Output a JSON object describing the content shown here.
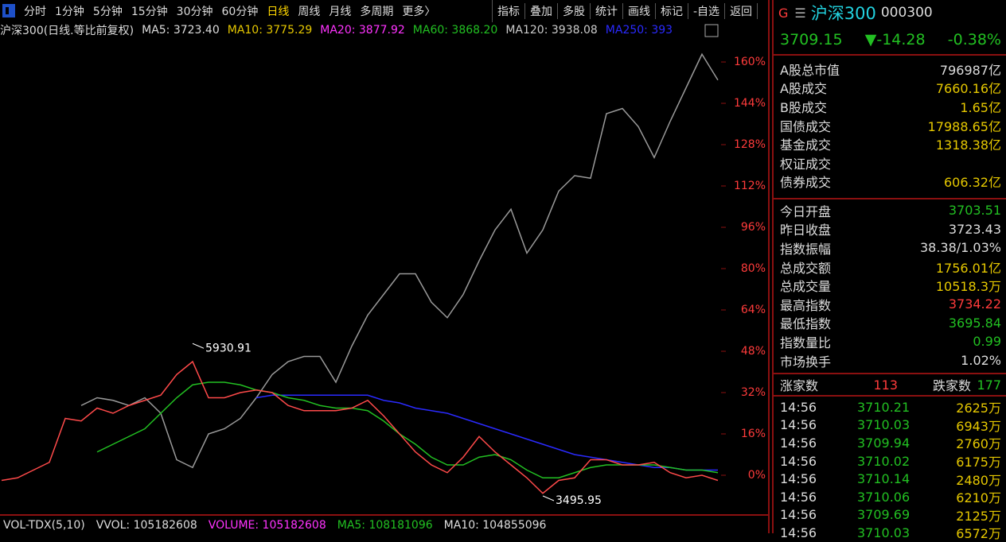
{
  "toolbar": {
    "periods": [
      "分时",
      "1分钟",
      "5分钟",
      "15分钟",
      "30分钟",
      "60分钟",
      "日线",
      "周线",
      "月线",
      "多周期",
      "更多〉"
    ],
    "selected": 6,
    "tools": [
      "指标",
      "叠加",
      "多股",
      "统计",
      "画线",
      "标记",
      "-自选",
      "返回"
    ]
  },
  "chart_header": {
    "name": "沪深300(日线.等比前复权)",
    "ma": [
      {
        "label": "MA5: 3723.40",
        "color": "#dddddd"
      },
      {
        "label": "MA10: 3775.29",
        "color": "#e6c800"
      },
      {
        "label": "MA20: 3877.92",
        "color": "#ff33ff"
      },
      {
        "label": "MA60: 3868.20",
        "color": "#22c022"
      },
      {
        "label": "MA120: 3938.08",
        "color": "#cccccc"
      },
      {
        "label": "MA250: 393",
        "color": "#2a2aff"
      }
    ]
  },
  "chart_data": {
    "type": "line",
    "ylim": [
      -12,
      168
    ],
    "yticks": [
      {
        "value": 0,
        "label": "0%"
      },
      {
        "value": 16,
        "label": "16%"
      },
      {
        "value": 32,
        "label": "32%"
      },
      {
        "value": 48,
        "label": "48%"
      },
      {
        "value": 64,
        "label": "64%"
      },
      {
        "value": 80,
        "label": "80%"
      },
      {
        "value": 96,
        "label": "96%"
      },
      {
        "value": 112,
        "label": "112%"
      },
      {
        "value": 128,
        "label": "128%"
      },
      {
        "value": 144,
        "label": "144%"
      },
      {
        "value": 160,
        "label": "160%"
      }
    ],
    "grid": false,
    "series": [
      {
        "color": "#9a9a9a",
        "values": [
          null,
          null,
          null,
          null,
          null,
          27,
          30,
          29,
          27,
          30,
          24,
          6,
          3,
          16,
          18,
          22,
          30,
          39,
          44,
          46,
          46,
          36,
          50,
          62,
          70,
          78,
          78,
          67,
          61,
          70,
          83,
          95,
          103,
          86,
          95,
          110,
          116,
          115,
          140,
          142,
          135,
          123,
          137,
          150,
          163,
          153
        ]
      },
      {
        "color": "#2a2aff",
        "values": [
          null,
          null,
          null,
          null,
          null,
          null,
          null,
          null,
          null,
          null,
          null,
          null,
          null,
          null,
          null,
          null,
          30,
          31,
          31,
          31,
          31,
          31,
          31,
          31,
          29,
          28,
          26,
          25,
          24,
          22,
          20,
          18,
          16,
          14,
          12,
          10,
          8,
          7,
          6,
          5,
          4,
          3,
          3,
          2,
          2,
          2
        ]
      },
      {
        "color": "#22c022",
        "values": [
          null,
          null,
          null,
          null,
          null,
          null,
          9,
          12,
          15,
          18,
          24,
          30,
          35,
          36,
          36,
          35,
          33,
          32,
          30,
          29,
          27,
          26,
          26,
          25,
          21,
          16,
          12,
          7,
          4,
          4,
          7,
          8,
          6,
          2,
          -1,
          -1,
          1,
          3,
          4,
          4,
          4,
          4,
          3,
          2,
          2,
          1
        ]
      },
      {
        "color": "#ff4a4a",
        "values": [
          -2,
          -1,
          2,
          5,
          22,
          21,
          26,
          24,
          27,
          29,
          31,
          39,
          44,
          30,
          30,
          32,
          33,
          32,
          27,
          25,
          25,
          25,
          26,
          29,
          23,
          16,
          9,
          4,
          1,
          7,
          15,
          9,
          4,
          -1,
          -7,
          -2,
          -1,
          6,
          6,
          4,
          4,
          5,
          1,
          -1,
          0,
          -2
        ]
      }
    ],
    "annotations": [
      {
        "text": "5930.91",
        "x": 12,
        "y": 51
      },
      {
        "text": "3495.95",
        "x": 34,
        "y": -8
      }
    ]
  },
  "volume_header": [
    {
      "label": "VOL-TDX(5,10)",
      "color": "#dddddd"
    },
    {
      "label": "VVOL: 105182608",
      "color": "#dddddd"
    },
    {
      "label": "VOLUME: 105182608",
      "color": "#ff33ff"
    },
    {
      "label": "MA5: 108181096",
      "color": "#22c022"
    },
    {
      "label": "MA10: 104855096",
      "color": "#dddddd"
    }
  ],
  "quote": {
    "prefix": "G",
    "name": "沪深300",
    "code": "000300",
    "price": "3709.15",
    "change": "▼-14.28",
    "percent": "-0.38%"
  },
  "stats": [
    {
      "label": "A股总市值",
      "value": "796987亿",
      "color": "#dddddd"
    },
    {
      "label": "A股成交",
      "value": "7660.16亿",
      "color": "#e6c800"
    },
    {
      "label": "B股成交",
      "value": "1.65亿",
      "color": "#e6c800"
    },
    {
      "label": "国债成交",
      "value": "17988.65亿",
      "color": "#e6c800"
    },
    {
      "label": "基金成交",
      "value": "1318.38亿",
      "color": "#e6c800"
    },
    {
      "label": "权证成交"
    },
    {
      "label": "债券成交",
      "value": "606.32亿",
      "color": "#e6c800"
    }
  ],
  "stats2": [
    {
      "label": "今日开盘",
      "value": "3703.51",
      "color": "#22c022"
    },
    {
      "label": "昨日收盘",
      "value": "3723.43",
      "color": "#dddddd"
    },
    {
      "label": "指数振幅",
      "value": "38.38/1.03%",
      "color": "#dddddd"
    },
    {
      "label": "总成交额",
      "value": "1756.01亿",
      "color": "#e6c800"
    },
    {
      "label": "总成交量",
      "value": "10518.3万",
      "color": "#e6c800"
    },
    {
      "label": "最高指数",
      "value": "3734.22",
      "color": "#ff3b3b"
    },
    {
      "label": "最低指数",
      "value": "3695.84",
      "color": "#22c022"
    },
    {
      "label": "指数量比",
      "value": "0.99",
      "color": "#22c022"
    },
    {
      "label": "市场换手",
      "value": "1.02%",
      "color": "#dddddd"
    }
  ],
  "breadth": {
    "up_label": "涨家数",
    "up": "113",
    "down_label": "跌家数",
    "down": "177"
  },
  "ticks": [
    [
      "14:56",
      "3710.21",
      "2625万"
    ],
    [
      "14:56",
      "3710.03",
      "6943万"
    ],
    [
      "14:56",
      "3709.94",
      "2760万"
    ],
    [
      "14:56",
      "3710.02",
      "6175万"
    ],
    [
      "14:56",
      "3710.14",
      "2480万"
    ],
    [
      "14:56",
      "3710.06",
      "6210万"
    ],
    [
      "14:56",
      "3709.69",
      "2125万"
    ],
    [
      "14:56",
      "3710.03",
      "6572万"
    ]
  ]
}
